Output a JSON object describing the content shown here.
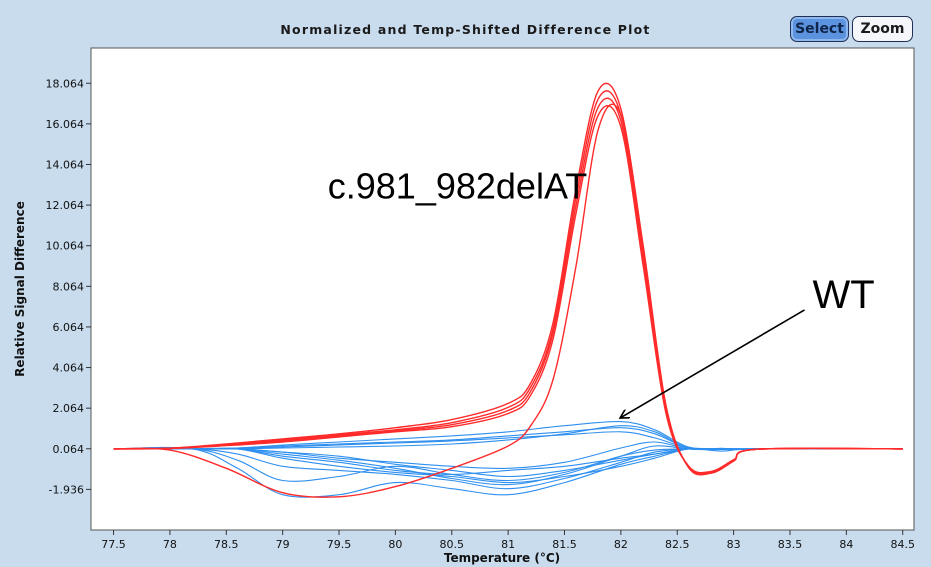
{
  "toolbar": {
    "select_label": "Select",
    "zoom_label": "Zoom"
  },
  "chart_data": {
    "type": "line",
    "title": "Normalized and Temp-Shifted Difference Plot",
    "xlabel": "Temperature (°C)",
    "ylabel": "Relative Signal Difference",
    "xlim": [
      77.3,
      84.6
    ],
    "ylim": [
      -3.936,
      19.8
    ],
    "x_ticks": [
      "77.5",
      "78",
      "78.5",
      "79",
      "79.5",
      "80",
      "80.5",
      "81",
      "81.5",
      "82",
      "82.5",
      "83",
      "83.5",
      "84",
      "84.5"
    ],
    "y_ticks": [
      "18.064",
      "16.064",
      "14.064",
      "12.064",
      "10.064",
      "8.064",
      "6.064",
      "4.064",
      "2.064",
      "0.064",
      "-1.936"
    ],
    "grid": false,
    "colors": {
      "mutant": "#ff2a2a",
      "wild_type": "#2e8fef",
      "plot_bg": "#ffffff",
      "frame_bg": "#c8dcee"
    },
    "annotations": [
      {
        "text": "c.981_982delAT",
        "x": 79.4,
        "y": 12.4
      },
      {
        "text": "WT",
        "x": 83.7,
        "y": 7.0,
        "arrow_to": {
          "x": 82.0,
          "y": 1.6
        }
      }
    ],
    "series": [
      {
        "group": "c.981_982delAT",
        "color": "#ff2a2a",
        "curves": [
          {
            "x": [
              77.5,
              78.0,
              78.5,
              79.0,
              79.5,
              80.0,
              80.5,
              81.0,
              81.2,
              81.4,
              81.6,
              81.8,
              82.0,
              82.2,
              82.4,
              82.6,
              82.8,
              83.0,
              83.2,
              84.5
            ],
            "y": [
              0.06,
              0.09,
              0.3,
              0.55,
              0.8,
              1.1,
              1.5,
              2.3,
              3.3,
              6.3,
              12.8,
              17.7,
              16.8,
              9.8,
              2.1,
              -0.85,
              -1.14,
              -0.55,
              0.04,
              0.06
            ]
          },
          {
            "x": [
              77.5,
              78.0,
              78.5,
              79.0,
              79.5,
              80.0,
              80.5,
              81.0,
              81.2,
              81.4,
              81.6,
              81.8,
              82.0,
              82.2,
              82.4,
              82.6,
              82.8,
              83.0,
              83.2,
              84.5
            ],
            "y": [
              0.06,
              0.09,
              0.28,
              0.5,
              0.75,
              1.0,
              1.35,
              2.1,
              3.1,
              6.0,
              12.4,
              17.3,
              16.5,
              9.5,
              2.0,
              -0.82,
              -1.1,
              -0.53,
              0.04,
              0.06
            ]
          },
          {
            "x": [
              77.5,
              78.0,
              78.5,
              79.0,
              79.5,
              80.0,
              80.5,
              81.0,
              81.2,
              81.4,
              81.6,
              81.8,
              82.0,
              82.2,
              82.4,
              82.6,
              82.8,
              83.0,
              83.2,
              84.5
            ],
            "y": [
              0.06,
              0.08,
              0.25,
              0.45,
              0.7,
              0.95,
              1.25,
              1.95,
              2.9,
              5.8,
              12.0,
              16.9,
              16.2,
              9.2,
              1.9,
              -0.8,
              -1.08,
              -0.5,
              0.04,
              0.06
            ]
          },
          {
            "x": [
              77.5,
              78.0,
              78.5,
              79.0,
              79.5,
              80.0,
              80.5,
              81.0,
              81.2,
              81.4,
              81.6,
              81.8,
              82.0,
              82.2,
              82.4,
              82.6,
              82.8,
              83.0,
              83.2,
              84.5
            ],
            "y": [
              0.06,
              0.08,
              0.22,
              0.4,
              0.65,
              0.9,
              1.15,
              1.8,
              2.7,
              5.5,
              11.6,
              16.5,
              15.9,
              9.0,
              1.8,
              -0.78,
              -1.05,
              -0.48,
              0.04,
              0.06
            ]
          },
          {
            "x": [
              77.5,
              78.0,
              78.5,
              79.0,
              79.5,
              80.0,
              80.5,
              81.0,
              81.2,
              81.4,
              81.6,
              81.8,
              82.0,
              82.2,
              82.4,
              82.6,
              82.8,
              83.0,
              83.2,
              84.5
            ],
            "y": [
              0.06,
              0.0,
              -0.9,
              -2.1,
              -2.3,
              -1.8,
              -0.9,
              0.2,
              1.2,
              3.5,
              9.0,
              15.8,
              16.5,
              10.0,
              2.2,
              -0.85,
              -1.12,
              -0.52,
              0.04,
              0.06
            ]
          }
        ]
      },
      {
        "group": "WT",
        "color": "#2e8fef",
        "curves": [
          {
            "x": [
              77.5,
              78.2,
              78.6,
              79.0,
              79.5,
              80.0,
              80.5,
              81.0,
              81.5,
              82.0,
              82.3,
              82.6,
              82.9,
              83.2,
              84.5
            ],
            "y": [
              0.06,
              0.06,
              -0.9,
              -2.2,
              -2.2,
              -1.6,
              -1.9,
              -2.2,
              -1.6,
              -0.7,
              -0.3,
              0.06,
              -0.05,
              0.06,
              0.06
            ]
          },
          {
            "x": [
              77.5,
              78.2,
              78.6,
              79.0,
              79.5,
              80.0,
              80.5,
              81.0,
              81.5,
              82.0,
              82.3,
              82.6,
              82.9,
              83.2,
              84.5
            ],
            "y": [
              0.06,
              0.06,
              -0.5,
              -1.5,
              -1.3,
              -0.8,
              -1.2,
              -1.5,
              -1.1,
              -0.3,
              0.0,
              0.06,
              0.03,
              0.06,
              0.06
            ]
          },
          {
            "x": [
              77.5,
              78.2,
              78.6,
              79.0,
              79.5,
              80.0,
              80.5,
              81.0,
              81.5,
              82.0,
              82.3,
              82.6,
              82.9,
              83.2,
              84.5
            ],
            "y": [
              0.06,
              0.06,
              -0.2,
              -0.8,
              -1.0,
              -1.2,
              -1.5,
              -1.9,
              -1.4,
              -0.6,
              -0.1,
              0.06,
              0.04,
              0.06,
              0.06
            ]
          },
          {
            "x": [
              77.5,
              78.2,
              78.6,
              79.0,
              79.5,
              80.0,
              80.5,
              81.0,
              81.5,
              82.0,
              82.3,
              82.6,
              82.9,
              83.2,
              84.5
            ],
            "y": [
              0.06,
              0.06,
              0.06,
              -0.3,
              -0.6,
              -1.0,
              -1.2,
              -1.0,
              -0.8,
              -0.4,
              -0.2,
              0.06,
              0.03,
              0.06,
              0.06
            ]
          },
          {
            "x": [
              77.5,
              78.2,
              78.6,
              79.0,
              79.5,
              80.0,
              80.5,
              81.0,
              81.5,
              82.0,
              82.3,
              82.6,
              82.9,
              83.2,
              84.5
            ],
            "y": [
              0.06,
              0.06,
              0.06,
              -0.1,
              -0.3,
              -0.7,
              -1.0,
              -1.3,
              -1.0,
              -0.5,
              -0.2,
              0.06,
              0.04,
              0.06,
              0.06
            ]
          },
          {
            "x": [
              77.5,
              78.2,
              78.6,
              79.0,
              79.5,
              80.0,
              80.5,
              81.0,
              81.5,
              82.0,
              82.3,
              82.6,
              82.9,
              83.2,
              84.5
            ],
            "y": [
              0.06,
              0.06,
              0.1,
              0.2,
              0.3,
              0.4,
              0.5,
              0.7,
              0.9,
              1.1,
              0.8,
              0.1,
              0.08,
              0.06,
              0.06
            ]
          },
          {
            "x": [
              77.5,
              78.2,
              78.6,
              79.0,
              79.5,
              80.0,
              80.5,
              81.0,
              81.5,
              82.0,
              82.3,
              82.6,
              82.9,
              83.2,
              84.5
            ],
            "y": [
              0.06,
              0.06,
              0.1,
              0.25,
              0.4,
              0.55,
              0.7,
              0.9,
              1.2,
              1.4,
              1.0,
              0.15,
              0.08,
              0.06,
              0.06
            ]
          },
          {
            "x": [
              77.5,
              78.2,
              78.6,
              79.0,
              79.5,
              80.0,
              80.5,
              81.0,
              81.5,
              82.0,
              82.3,
              82.6,
              82.9,
              83.2,
              84.5
            ],
            "y": [
              0.06,
              0.06,
              0.08,
              0.15,
              0.25,
              0.35,
              0.45,
              0.6,
              0.75,
              0.9,
              0.6,
              0.1,
              0.07,
              0.06,
              0.06
            ]
          },
          {
            "x": [
              77.5,
              78.2,
              78.6,
              79.0,
              79.5,
              80.0,
              80.5,
              81.0,
              81.5,
              82.0,
              82.3,
              82.6,
              82.9,
              83.2,
              84.5
            ],
            "y": [
              0.06,
              0.06,
              0.06,
              -0.2,
              -0.5,
              -0.9,
              -1.4,
              -1.7,
              -1.2,
              -0.3,
              0.2,
              0.06,
              0.04,
              0.06,
              0.06
            ]
          },
          {
            "x": [
              77.5,
              78.2,
              78.6,
              79.0,
              79.5,
              80.0,
              80.5,
              81.0,
              81.5,
              82.0,
              82.3,
              82.6,
              82.9,
              83.2,
              84.5
            ],
            "y": [
              0.06,
              0.06,
              0.06,
              -0.1,
              -0.4,
              -0.6,
              -0.8,
              -0.9,
              -0.6,
              0.1,
              0.4,
              0.06,
              0.03,
              0.06,
              0.06
            ]
          },
          {
            "x": [
              77.5,
              78.2,
              78.6,
              79.0,
              79.5,
              80.0,
              80.5,
              81.0,
              81.5,
              82.0,
              82.3,
              82.6,
              82.9,
              83.2,
              84.5
            ],
            "y": [
              0.06,
              0.06,
              0.06,
              0.1,
              0.15,
              0.2,
              0.3,
              0.5,
              0.8,
              1.2,
              0.9,
              0.1,
              0.06,
              0.06,
              0.06
            ]
          },
          {
            "x": [
              77.5,
              78.2,
              78.6,
              79.0,
              79.5,
              80.0,
              80.5,
              81.0,
              81.5,
              82.0,
              82.3,
              82.6,
              82.9,
              83.2,
              84.5
            ],
            "y": [
              0.06,
              0.06,
              0.06,
              -0.4,
              -0.8,
              -1.1,
              -1.3,
              -1.6,
              -1.3,
              -0.8,
              -0.4,
              0.06,
              0.04,
              0.06,
              0.06
            ]
          }
        ]
      }
    ]
  }
}
